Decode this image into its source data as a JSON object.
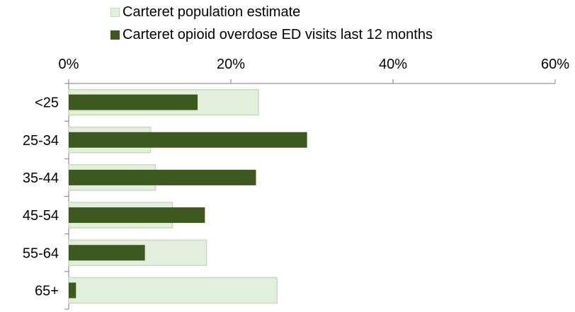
{
  "chart_data": {
    "type": "bar",
    "orientation": "horizontal",
    "title": "",
    "xlabel": "",
    "ylabel": "",
    "categories": [
      "<25",
      "25-34",
      "35-44",
      "45-54",
      "55-64",
      "65+"
    ],
    "series": [
      {
        "name": "Carteret population estimate",
        "values": [
          23.4,
          10.1,
          10.7,
          12.8,
          17.0,
          25.7
        ],
        "color": "#e3efdd",
        "border": "#c8dcbc"
      },
      {
        "name": "Carteret opioid overdose ED visits last 12 months",
        "values": [
          15.9,
          29.4,
          23.1,
          16.8,
          9.4,
          0.9
        ],
        "color": "#3d5a1e"
      }
    ],
    "xlim": [
      0,
      60
    ],
    "xticks": [
      "0%",
      "20%",
      "40%",
      "60%"
    ],
    "xtick_values": [
      0,
      20,
      40,
      60
    ],
    "axis_position": "top",
    "legend_position": "top",
    "grid": false
  }
}
